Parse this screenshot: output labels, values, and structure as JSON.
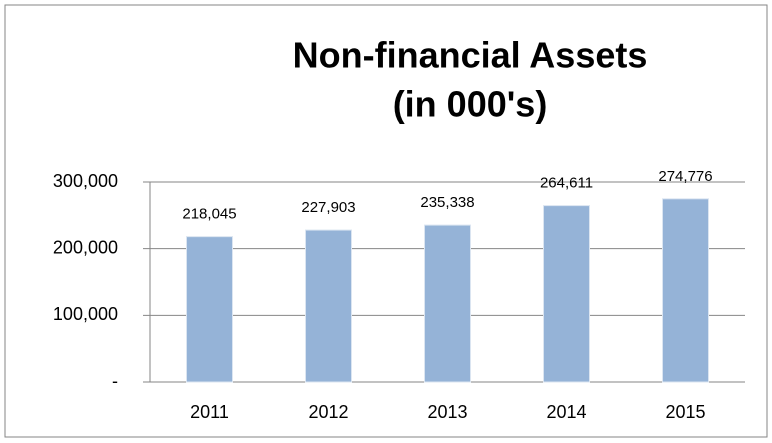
{
  "chart_data": {
    "type": "bar",
    "title": [
      "Non-financial Assets",
      "(in 000's)"
    ],
    "categories": [
      "2011",
      "2012",
      "2013",
      "2014",
      "2015"
    ],
    "values": [
      218045,
      227903,
      235338,
      264611,
      274776
    ],
    "value_labels": [
      "218,045",
      "227,903",
      "235,338",
      "264,611",
      "274,776"
    ],
    "color": "#95b3d7",
    "ylim": [
      0,
      300000
    ],
    "yticks": [
      {
        "value": 0,
        "label": "-"
      },
      {
        "value": 100000,
        "label": "100,000"
      },
      {
        "value": 200000,
        "label": "200,000"
      },
      {
        "value": 300000,
        "label": "300,000"
      }
    ],
    "grid": true
  }
}
